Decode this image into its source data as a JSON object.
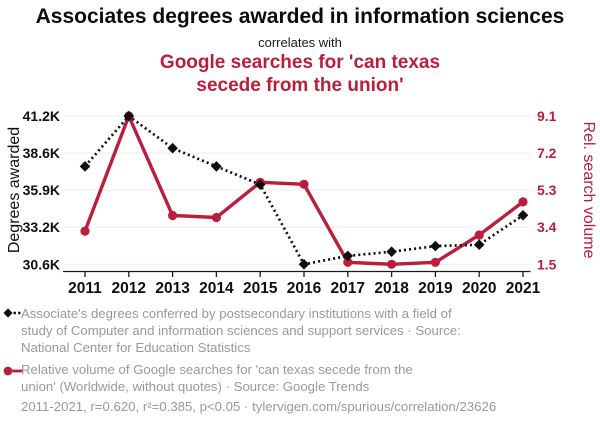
{
  "header": {
    "title": "Associates degrees awarded in information sciences",
    "connector": "correlates with",
    "subtitle": "Google searches for 'can texas\nsecede from the union'"
  },
  "colors": {
    "black": "#0f0f0f",
    "red": "#b91e3c",
    "gray_text": "#999999",
    "grid": "#ededed",
    "axis": "#1a1a1a"
  },
  "chart_data": {
    "type": "line",
    "categories": [
      "2011",
      "2012",
      "2013",
      "2014",
      "2015",
      "2016",
      "2017",
      "2018",
      "2019",
      "2020",
      "2021"
    ],
    "series": [
      {
        "name": "Associate's degrees awarded (Computer and information sciences)",
        "axis": "left",
        "style": "dotted",
        "marker": "diamond",
        "color": "#0f0f0f",
        "values": [
          37600,
          41200,
          38900,
          37600,
          36300,
          30600,
          31200,
          31500,
          31900,
          32000,
          34100
        ]
      },
      {
        "name": "Relative volume of Google searches for 'can texas secede from the union'",
        "axis": "right",
        "style": "solid",
        "marker": "circle",
        "color": "#b91e3c",
        "values": [
          3.2,
          9.1,
          4.0,
          3.9,
          5.7,
          5.6,
          1.6,
          1.5,
          1.6,
          3.0,
          4.7
        ]
      }
    ],
    "left_axis": {
      "label": "Degrees awarded",
      "min": 30600,
      "max": 41200,
      "ticks": [
        "30.6K",
        "33.2K",
        "35.9K",
        "38.6K",
        "41.2K"
      ]
    },
    "right_axis": {
      "label": "Rel. search volume",
      "min": 1.5,
      "max": 9.1,
      "ticks": [
        "1.5",
        "3.4",
        "5.3",
        "7.2",
        "9.1"
      ]
    },
    "grid": "horizontal",
    "legend_position": "bottom"
  },
  "legend": {
    "series1": {
      "lines": [
        "Associate's degrees conferred by postsecondary institutions with a field of",
        "study of Computer and information sciences and support services · Source:",
        "National Center for Education Statistics"
      ]
    },
    "series2": {
      "lines": [
        "Relative volume of Google searches for 'can texas secede from the",
        "union' (Worldwide, without quotes) · Source: Google Trends"
      ]
    }
  },
  "footer": {
    "text": "2011-2021, r=0.620, r²=0.385, p<0.05 · tylervigen.com/spurious/correlation/23626"
  }
}
